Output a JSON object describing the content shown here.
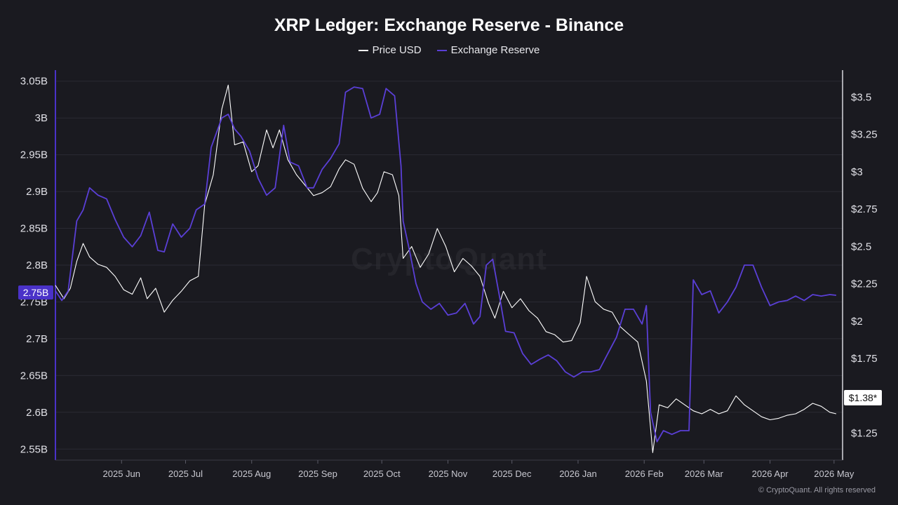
{
  "title": "XRP Ledger: Exchange Reserve - Binance",
  "legend": {
    "price": "Price USD",
    "reserve": "Exchange Reserve"
  },
  "colors": {
    "price": "#ffffff",
    "reserve": "#5a3fd6",
    "background": "#1a1a20"
  },
  "watermark": "CryptoQuant",
  "footer": "© CryptoQuant. All rights reserved",
  "badges": {
    "left": "2.75B",
    "right": "$1.38*"
  },
  "chart_data": {
    "type": "line",
    "title": "XRP Ledger: Exchange Reserve - Binance",
    "x_range": [
      "2025-05-01",
      "2026-05-05"
    ],
    "x_ticks": [
      {
        "date": "2025-06-01",
        "label": "2025 Jun"
      },
      {
        "date": "2025-07-01",
        "label": "2025 Jul"
      },
      {
        "date": "2025-08-01",
        "label": "2025 Aug"
      },
      {
        "date": "2025-09-01",
        "label": "2025 Sep"
      },
      {
        "date": "2025-10-01",
        "label": "2025 Oct"
      },
      {
        "date": "2025-11-01",
        "label": "2025 Nov"
      },
      {
        "date": "2025-12-01",
        "label": "2025 Dec"
      },
      {
        "date": "2026-01-01",
        "label": "2026 Jan"
      },
      {
        "date": "2026-02-01",
        "label": "2026 Feb"
      },
      {
        "date": "2026-03-01",
        "label": "2026 Mar"
      },
      {
        "date": "2026-04-01",
        "label": "2026 Apr"
      },
      {
        "date": "2026-05-01",
        "label": "2026 May"
      }
    ],
    "y_left": {
      "range": [
        2.535,
        3.065
      ],
      "ticks": [
        {
          "value": 3.05,
          "label": "3.05B"
        },
        {
          "value": 3.0,
          "label": "3B"
        },
        {
          "value": 2.95,
          "label": "2.95B"
        },
        {
          "value": 2.9,
          "label": "2.9B"
        },
        {
          "value": 2.85,
          "label": "2.85B"
        },
        {
          "value": 2.8,
          "label": "2.8B"
        },
        {
          "value": 2.75,
          "label": "2.75B"
        },
        {
          "value": 2.7,
          "label": "2.7B"
        },
        {
          "value": 2.65,
          "label": "2.65B"
        },
        {
          "value": 2.6,
          "label": "2.6B"
        },
        {
          "value": 2.55,
          "label": "2.55B"
        }
      ]
    },
    "y_right": {
      "range": [
        1.07,
        3.68
      ],
      "ticks": [
        {
          "value": 3.5,
          "label": "$3.5"
        },
        {
          "value": 3.25,
          "label": "$3.25"
        },
        {
          "value": 3.0,
          "label": "$3"
        },
        {
          "value": 2.75,
          "label": "$2.75"
        },
        {
          "value": 2.5,
          "label": "$2.5"
        },
        {
          "value": 2.25,
          "label": "$2.25"
        },
        {
          "value": 2.0,
          "label": "$2"
        },
        {
          "value": 1.75,
          "label": "$1.75"
        },
        {
          "value": 1.5,
          "label": "$1.5"
        },
        {
          "value": 1.25,
          "label": "$1.25"
        }
      ]
    },
    "series": [
      {
        "name": "Price USD",
        "axis": "right",
        "points": [
          [
            "2025-05-01",
            2.24
          ],
          [
            "2025-05-05",
            2.15
          ],
          [
            "2025-05-08",
            2.22
          ],
          [
            "2025-05-11",
            2.4
          ],
          [
            "2025-05-14",
            2.52
          ],
          [
            "2025-05-17",
            2.43
          ],
          [
            "2025-05-21",
            2.38
          ],
          [
            "2025-05-25",
            2.36
          ],
          [
            "2025-05-29",
            2.3
          ],
          [
            "2025-06-02",
            2.21
          ],
          [
            "2025-06-06",
            2.18
          ],
          [
            "2025-06-10",
            2.29
          ],
          [
            "2025-06-13",
            2.15
          ],
          [
            "2025-06-17",
            2.22
          ],
          [
            "2025-06-21",
            2.06
          ],
          [
            "2025-06-25",
            2.14
          ],
          [
            "2025-06-29",
            2.2
          ],
          [
            "2025-07-03",
            2.27
          ],
          [
            "2025-07-07",
            2.3
          ],
          [
            "2025-07-10",
            2.78
          ],
          [
            "2025-07-14",
            2.98
          ],
          [
            "2025-07-18",
            3.42
          ],
          [
            "2025-07-21",
            3.58
          ],
          [
            "2025-07-24",
            3.18
          ],
          [
            "2025-07-28",
            3.2
          ],
          [
            "2025-08-01",
            3.0
          ],
          [
            "2025-08-04",
            3.04
          ],
          [
            "2025-08-08",
            3.28
          ],
          [
            "2025-08-11",
            3.16
          ],
          [
            "2025-08-14",
            3.28
          ],
          [
            "2025-08-18",
            3.08
          ],
          [
            "2025-08-22",
            2.98
          ],
          [
            "2025-08-26",
            2.91
          ],
          [
            "2025-08-30",
            2.84
          ],
          [
            "2025-09-03",
            2.86
          ],
          [
            "2025-09-07",
            2.9
          ],
          [
            "2025-09-11",
            3.02
          ],
          [
            "2025-09-14",
            3.08
          ],
          [
            "2025-09-18",
            3.05
          ],
          [
            "2025-09-22",
            2.89
          ],
          [
            "2025-09-26",
            2.8
          ],
          [
            "2025-09-29",
            2.86
          ],
          [
            "2025-10-02",
            3.0
          ],
          [
            "2025-10-06",
            2.98
          ],
          [
            "2025-10-09",
            2.84
          ],
          [
            "2025-10-11",
            2.42
          ],
          [
            "2025-10-15",
            2.5
          ],
          [
            "2025-10-19",
            2.36
          ],
          [
            "2025-10-23",
            2.45
          ],
          [
            "2025-10-27",
            2.62
          ],
          [
            "2025-10-31",
            2.5
          ],
          [
            "2025-11-04",
            2.33
          ],
          [
            "2025-11-08",
            2.42
          ],
          [
            "2025-11-12",
            2.37
          ],
          [
            "2025-11-16",
            2.3
          ],
          [
            "2025-11-20",
            2.12
          ],
          [
            "2025-11-23",
            2.02
          ],
          [
            "2025-11-27",
            2.2
          ],
          [
            "2025-12-01",
            2.09
          ],
          [
            "2025-12-05",
            2.15
          ],
          [
            "2025-12-09",
            2.07
          ],
          [
            "2025-12-13",
            2.02
          ],
          [
            "2025-12-17",
            1.93
          ],
          [
            "2025-12-21",
            1.91
          ],
          [
            "2025-12-25",
            1.86
          ],
          [
            "2025-12-29",
            1.87
          ],
          [
            "2026-01-02",
            1.99
          ],
          [
            "2026-01-05",
            2.3
          ],
          [
            "2026-01-09",
            2.13
          ],
          [
            "2026-01-13",
            2.08
          ],
          [
            "2026-01-17",
            2.06
          ],
          [
            "2026-01-21",
            1.96
          ],
          [
            "2026-01-25",
            1.91
          ],
          [
            "2026-01-29",
            1.86
          ],
          [
            "2026-02-02",
            1.6
          ],
          [
            "2026-02-05",
            1.12
          ],
          [
            "2026-02-08",
            1.44
          ],
          [
            "2026-02-12",
            1.42
          ],
          [
            "2026-02-16",
            1.48
          ],
          [
            "2026-02-20",
            1.44
          ],
          [
            "2026-02-24",
            1.4
          ],
          [
            "2026-02-28",
            1.38
          ],
          [
            "2026-03-04",
            1.41
          ],
          [
            "2026-03-08",
            1.38
          ],
          [
            "2026-03-12",
            1.4
          ],
          [
            "2026-03-16",
            1.5
          ],
          [
            "2026-03-20",
            1.44
          ],
          [
            "2026-03-24",
            1.4
          ],
          [
            "2026-03-28",
            1.36
          ],
          [
            "2026-04-01",
            1.34
          ],
          [
            "2026-04-05",
            1.35
          ],
          [
            "2026-04-09",
            1.37
          ],
          [
            "2026-04-13",
            1.38
          ],
          [
            "2026-04-17",
            1.41
          ],
          [
            "2026-04-21",
            1.45
          ],
          [
            "2026-04-25",
            1.43
          ],
          [
            "2026-04-29",
            1.39
          ],
          [
            "2026-05-02",
            1.38
          ]
        ]
      },
      {
        "name": "Exchange Reserve",
        "axis": "left",
        "points": [
          [
            "2025-05-01",
            2.765
          ],
          [
            "2025-05-04",
            2.752
          ],
          [
            "2025-05-07",
            2.765
          ],
          [
            "2025-05-11",
            2.86
          ],
          [
            "2025-05-14",
            2.875
          ],
          [
            "2025-05-17",
            2.905
          ],
          [
            "2025-05-21",
            2.895
          ],
          [
            "2025-05-25",
            2.89
          ],
          [
            "2025-05-29",
            2.862
          ],
          [
            "2025-06-02",
            2.838
          ],
          [
            "2025-06-06",
            2.825
          ],
          [
            "2025-06-10",
            2.84
          ],
          [
            "2025-06-14",
            2.872
          ],
          [
            "2025-06-18",
            2.82
          ],
          [
            "2025-06-21",
            2.818
          ],
          [
            "2025-06-25",
            2.856
          ],
          [
            "2025-06-29",
            2.838
          ],
          [
            "2025-07-03",
            2.85
          ],
          [
            "2025-07-06",
            2.875
          ],
          [
            "2025-07-10",
            2.883
          ],
          [
            "2025-07-13",
            2.96
          ],
          [
            "2025-07-18",
            3.0
          ],
          [
            "2025-07-21",
            3.005
          ],
          [
            "2025-07-24",
            2.985
          ],
          [
            "2025-07-27",
            2.975
          ],
          [
            "2025-07-31",
            2.955
          ],
          [
            "2025-08-04",
            2.918
          ],
          [
            "2025-08-08",
            2.895
          ],
          [
            "2025-08-12",
            2.905
          ],
          [
            "2025-08-16",
            2.99
          ],
          [
            "2025-08-19",
            2.94
          ],
          [
            "2025-08-23",
            2.935
          ],
          [
            "2025-08-27",
            2.905
          ],
          [
            "2025-08-30",
            2.905
          ],
          [
            "2025-09-03",
            2.93
          ],
          [
            "2025-09-07",
            2.945
          ],
          [
            "2025-09-11",
            2.965
          ],
          [
            "2025-09-14",
            3.035
          ],
          [
            "2025-09-18",
            3.042
          ],
          [
            "2025-09-22",
            3.04
          ],
          [
            "2025-09-26",
            3.0
          ],
          [
            "2025-09-30",
            3.005
          ],
          [
            "2025-10-03",
            3.04
          ],
          [
            "2025-10-07",
            3.03
          ],
          [
            "2025-10-10",
            2.935
          ],
          [
            "2025-10-11",
            2.86
          ],
          [
            "2025-10-14",
            2.82
          ],
          [
            "2025-10-17",
            2.775
          ],
          [
            "2025-10-20",
            2.75
          ],
          [
            "2025-10-24",
            2.74
          ],
          [
            "2025-10-28",
            2.748
          ],
          [
            "2025-11-01",
            2.732
          ],
          [
            "2025-11-05",
            2.735
          ],
          [
            "2025-11-09",
            2.748
          ],
          [
            "2025-11-13",
            2.72
          ],
          [
            "2025-11-16",
            2.73
          ],
          [
            "2025-11-19",
            2.8
          ],
          [
            "2025-11-22",
            2.808
          ],
          [
            "2025-11-25",
            2.76
          ],
          [
            "2025-11-28",
            2.71
          ],
          [
            "2025-12-02",
            2.708
          ],
          [
            "2025-12-06",
            2.68
          ],
          [
            "2025-12-10",
            2.665
          ],
          [
            "2025-12-14",
            2.672
          ],
          [
            "2025-12-18",
            2.678
          ],
          [
            "2025-12-22",
            2.67
          ],
          [
            "2025-12-26",
            2.655
          ],
          [
            "2025-12-30",
            2.648
          ],
          [
            "2026-01-03",
            2.655
          ],
          [
            "2026-01-07",
            2.655
          ],
          [
            "2026-01-11",
            2.658
          ],
          [
            "2026-01-15",
            2.68
          ],
          [
            "2026-01-19",
            2.702
          ],
          [
            "2026-01-23",
            2.74
          ],
          [
            "2026-01-27",
            2.74
          ],
          [
            "2026-01-31",
            2.72
          ],
          [
            "2026-02-02",
            2.745
          ],
          [
            "2026-02-04",
            2.6
          ],
          [
            "2026-02-07",
            2.56
          ],
          [
            "2026-02-10",
            2.575
          ],
          [
            "2026-02-14",
            2.57
          ],
          [
            "2026-02-18",
            2.575
          ],
          [
            "2026-02-22",
            2.575
          ],
          [
            "2026-02-24",
            2.78
          ],
          [
            "2026-02-28",
            2.76
          ],
          [
            "2026-03-04",
            2.765
          ],
          [
            "2026-03-08",
            2.735
          ],
          [
            "2026-03-12",
            2.75
          ],
          [
            "2026-03-16",
            2.77
          ],
          [
            "2026-03-20",
            2.8
          ],
          [
            "2026-03-24",
            2.8
          ],
          [
            "2026-03-28",
            2.77
          ],
          [
            "2026-04-01",
            2.745
          ],
          [
            "2026-04-05",
            2.75
          ],
          [
            "2026-04-09",
            2.752
          ],
          [
            "2026-04-13",
            2.758
          ],
          [
            "2026-04-17",
            2.752
          ],
          [
            "2026-04-21",
            2.76
          ],
          [
            "2026-04-25",
            2.758
          ],
          [
            "2026-04-29",
            2.76
          ],
          [
            "2026-05-02",
            2.759
          ]
        ]
      }
    ]
  }
}
